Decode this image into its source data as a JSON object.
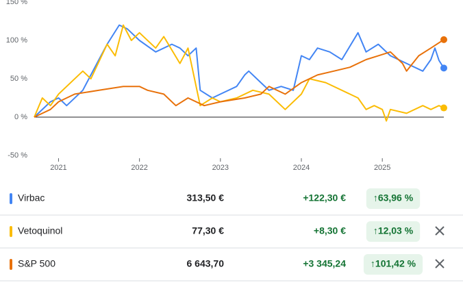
{
  "chart_data": {
    "type": "line",
    "xlim": [
      2020.7,
      2025.76
    ],
    "xticks": [
      2021,
      2022,
      2023,
      2024,
      2025
    ],
    "ylim": [
      -50,
      150
    ],
    "yticks": [
      {
        "value": 150,
        "label": "150 %"
      },
      {
        "value": 100,
        "label": "100 %"
      },
      {
        "value": 50,
        "label": "50 %"
      },
      {
        "value": 0,
        "label": "0 %"
      },
      {
        "value": -50,
        "label": "-50 %"
      }
    ],
    "series": [
      {
        "name": "Virbac",
        "color": "#4285f4",
        "x": [
          2020.7,
          2020.9,
          2021.0,
          2021.1,
          2021.3,
          2021.4,
          2021.5,
          2021.6,
          2021.75,
          2021.85,
          2022.0,
          2022.2,
          2022.4,
          2022.5,
          2022.6,
          2022.7,
          2022.75,
          2022.9,
          2023.0,
          2023.2,
          2023.3,
          2023.35,
          2023.5,
          2023.6,
          2023.75,
          2023.9,
          2024.0,
          2024.1,
          2024.2,
          2024.35,
          2024.5,
          2024.7,
          2024.8,
          2024.95,
          2025.1,
          2025.3,
          2025.5,
          2025.6,
          2025.65,
          2025.7,
          2025.76
        ],
        "values": [
          0,
          20,
          25,
          15,
          35,
          55,
          75,
          95,
          120,
          115,
          100,
          85,
          95,
          90,
          80,
          90,
          35,
          25,
          30,
          40,
          55,
          60,
          45,
          35,
          40,
          35,
          80,
          75,
          90,
          85,
          75,
          110,
          85,
          95,
          80,
          70,
          60,
          75,
          90,
          74,
          64
        ]
      },
      {
        "name": "Vetoquinol",
        "color": "#fbbc04",
        "x": [
          2020.7,
          2020.8,
          2020.9,
          2021.0,
          2021.3,
          2021.4,
          2021.6,
          2021.7,
          2021.8,
          2021.9,
          2022.0,
          2022.2,
          2022.3,
          2022.5,
          2022.6,
          2022.75,
          2022.9,
          2023.0,
          2023.2,
          2023.4,
          2023.6,
          2023.8,
          2024.0,
          2024.1,
          2024.3,
          2024.6,
          2024.7,
          2024.8,
          2024.9,
          2025.0,
          2025.05,
          2025.1,
          2025.3,
          2025.5,
          2025.6,
          2025.7,
          2025.76
        ],
        "values": [
          0,
          25,
          15,
          30,
          60,
          50,
          95,
          80,
          120,
          100,
          110,
          90,
          105,
          70,
          90,
          15,
          25,
          20,
          25,
          35,
          30,
          10,
          30,
          50,
          45,
          30,
          25,
          10,
          15,
          10,
          -5,
          10,
          5,
          15,
          10,
          15,
          12
        ]
      },
      {
        "name": "S&P 500",
        "color": "#e8710a",
        "x": [
          2020.7,
          2020.9,
          2021.0,
          2021.2,
          2021.5,
          2021.8,
          2022.0,
          2022.1,
          2022.3,
          2022.45,
          2022.6,
          2022.8,
          2023.0,
          2023.3,
          2023.5,
          2023.6,
          2023.8,
          2024.0,
          2024.2,
          2024.4,
          2024.6,
          2024.8,
          2024.95,
          2025.1,
          2025.25,
          2025.3,
          2025.45,
          2025.6,
          2025.76
        ],
        "values": [
          0,
          10,
          20,
          30,
          35,
          40,
          40,
          35,
          30,
          15,
          25,
          15,
          20,
          25,
          30,
          40,
          30,
          45,
          55,
          60,
          65,
          75,
          80,
          85,
          70,
          60,
          80,
          90,
          101
        ]
      }
    ]
  },
  "table": {
    "rows": [
      {
        "price": "313,50 €",
        "change": "+122,30 €",
        "change_percent": "↑63,96 %"
      },
      {
        "price": "77,30 €",
        "change": "+8,30 €",
        "change_percent": "↑12,03 %"
      },
      {
        "price": "6 643,70",
        "change": "+3 345,24",
        "change_percent": "↑101,42 %"
      }
    ]
  }
}
